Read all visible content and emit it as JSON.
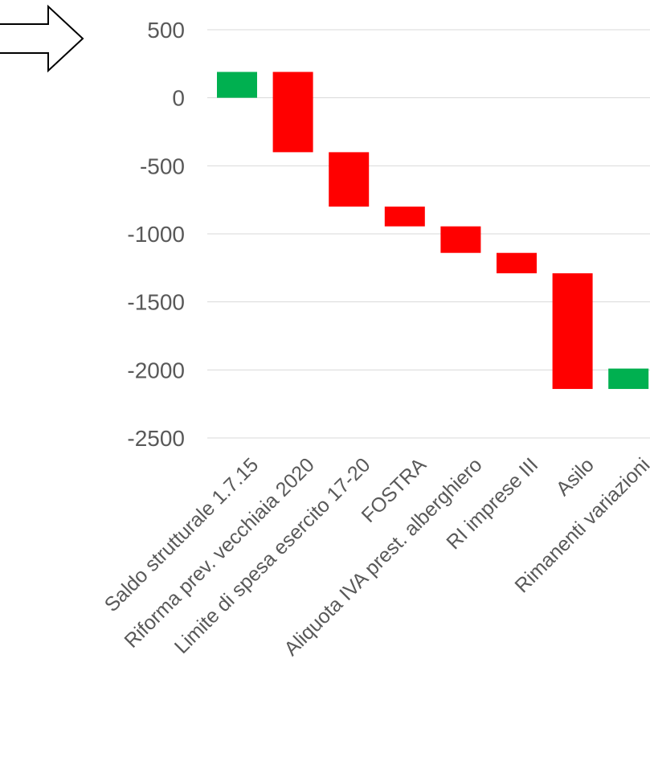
{
  "chart_data": {
    "type": "waterfall",
    "title": "",
    "xlabel": "",
    "ylabel": "",
    "ylim": [
      -2500,
      500
    ],
    "y_ticks": [
      500,
      0,
      -500,
      -1000,
      -1500,
      -2000,
      -2500
    ],
    "grid": true,
    "categories": [
      "Saldo strutturale 1.7.15",
      "Riforma prev. vecchiaia 2020",
      "Limite di spesa esercito 17-20",
      "FOSTRA",
      "Aliquota IVA prest. alberghiero",
      "RI imprese III",
      "Asilo",
      "Rimanenti variazioni"
    ],
    "bars": [
      {
        "start": 0,
        "end": 190,
        "color": "green"
      },
      {
        "start": 190,
        "end": -400,
        "color": "red"
      },
      {
        "start": -400,
        "end": -800,
        "color": "red"
      },
      {
        "start": -800,
        "end": -945,
        "color": "red"
      },
      {
        "start": -945,
        "end": -1140,
        "color": "red"
      },
      {
        "start": -1140,
        "end": -1290,
        "color": "red"
      },
      {
        "start": -1290,
        "end": -2140,
        "color": "red"
      },
      {
        "start": -2140,
        "end": -1990,
        "color": "green"
      }
    ],
    "colors": {
      "green": "#00b050",
      "red": "#ff0000",
      "grid": "#d9d9d9",
      "text": "#595959"
    }
  },
  "decorations": {
    "arrow": "right-arrow-outline"
  }
}
